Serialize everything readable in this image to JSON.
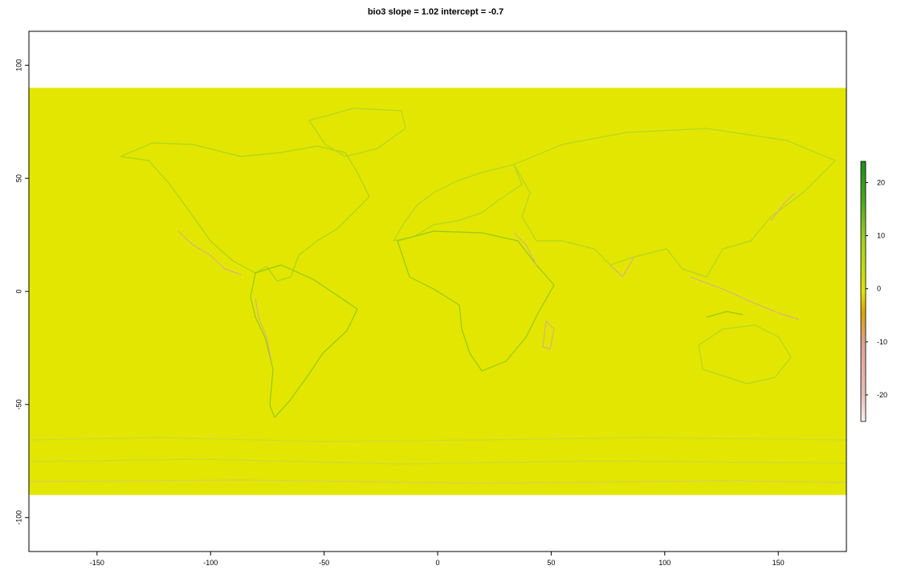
{
  "title": "bio3 slope = 1.02 intercept = -0.7",
  "chart_data": {
    "type": "heatmap",
    "title": "bio3 slope = 1.02 intercept = -0.7",
    "xlabel": "",
    "ylabel": "",
    "xlim": [
      -180,
      180
    ],
    "ylim": [
      -115,
      115
    ],
    "raster_extent": {
      "x": [
        -180,
        180
      ],
      "y": [
        -90,
        90
      ]
    },
    "background_value": 0,
    "x_ticks": [
      -150,
      -100,
      -50,
      0,
      50,
      100,
      150
    ],
    "y_ticks": [
      100,
      50,
      0,
      -50,
      -100
    ],
    "legend": {
      "placement": "right",
      "range": [
        -25,
        24
      ],
      "ticks": [
        20,
        10,
        0,
        -10,
        -20
      ],
      "colors": {
        "min": "#f7f0f0",
        "low": "#e39a8f",
        "mid_low": "#dca400",
        "zero": "#e2e600",
        "mid_high": "#7fc01a",
        "max": "#1f8a1f"
      }
    }
  }
}
